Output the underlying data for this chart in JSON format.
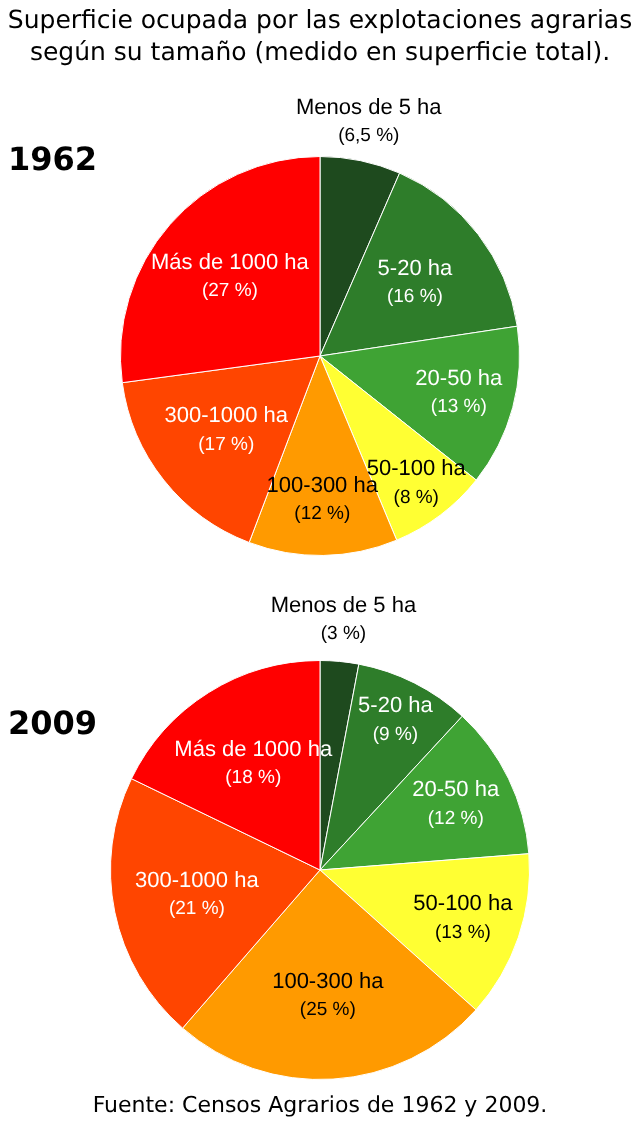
{
  "chart_data": [
    {
      "type": "pie",
      "title": "Superficie ocupada por las explotaciones agrarias según su tamaño (medido en superficie total).",
      "subtitle": "1962",
      "categories": [
        "Menos de 5 ha",
        "5-20 ha",
        "20-50 ha",
        "50-100 ha",
        "100-300 ha",
        "300-1000 ha",
        "Más de 1000 ha"
      ],
      "values": [
        6.5,
        16,
        13,
        8,
        12,
        17,
        27
      ],
      "value_labels": [
        "(6,5 %)",
        "(16 %)",
        "(13 %)",
        "(8 %)",
        "(12 %)",
        "(17 %)",
        "(27 %)"
      ],
      "colors": [
        "#1e4a1e",
        "#2e7d2a",
        "#3fa334",
        "#ffff33",
        "#ff9a00",
        "#ff4500",
        "#ff0000"
      ]
    },
    {
      "type": "pie",
      "subtitle": "2009",
      "categories": [
        "Menos de 5 ha",
        "5-20 ha",
        "20-50 ha",
        "50-100 ha",
        "100-300 ha",
        "300-1000 ha",
        "Más de 1000 ha"
      ],
      "values": [
        3,
        9,
        12,
        13,
        25,
        21,
        18
      ],
      "value_labels": [
        "(3 %)",
        "(9 %)",
        "(12 %)",
        "(13 %)",
        "(25 %)",
        "(21 %)",
        "(18 %)"
      ],
      "colors": [
        "#1e4a1e",
        "#2e7d2a",
        "#3fa334",
        "#ffff33",
        "#ff9a00",
        "#ff4500",
        "#ff0000"
      ],
      "annotations": [
        "Fuente: Censos Agrarios de 1962 y 2009."
      ]
    }
  ]
}
